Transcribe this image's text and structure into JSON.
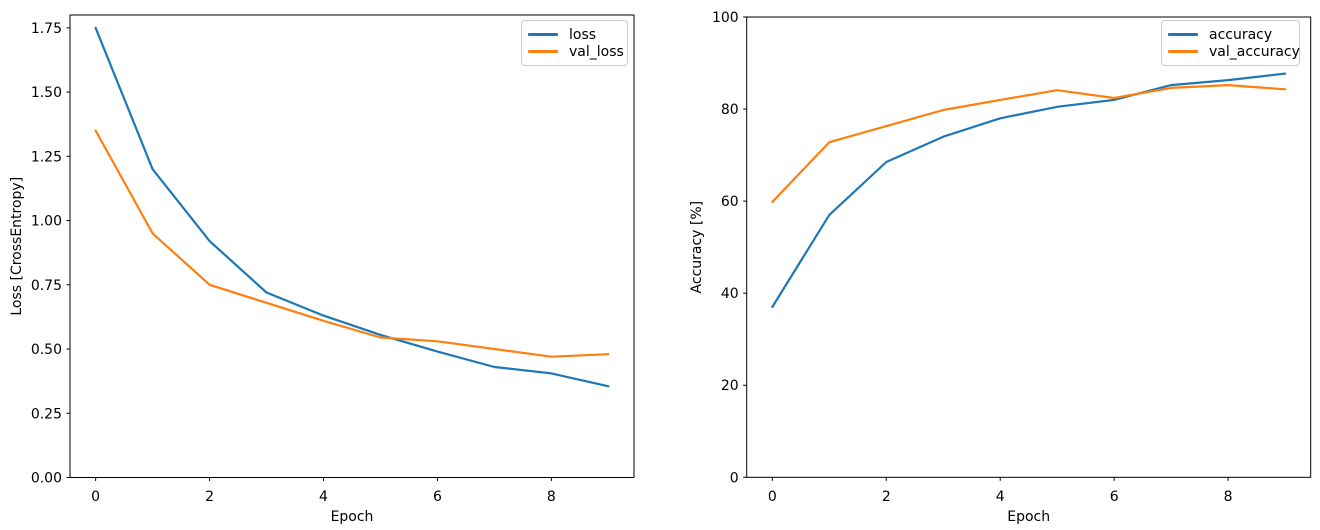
{
  "figure": {
    "background": "#ffffff"
  },
  "chart_data": [
    {
      "type": "line",
      "title": "",
      "xlabel": "Epoch",
      "ylabel": "Loss [CrossEntropy]",
      "x": [
        0,
        1,
        2,
        3,
        4,
        5,
        6,
        7,
        8,
        9
      ],
      "series": [
        {
          "name": "loss",
          "color": "#1f77b4",
          "values": [
            1.75,
            1.2,
            0.92,
            0.72,
            0.63,
            0.555,
            0.49,
            0.43,
            0.405,
            0.355
          ]
        },
        {
          "name": "val_loss",
          "color": "#ff7f0e",
          "values": [
            1.35,
            0.95,
            0.75,
            0.68,
            0.61,
            0.545,
            0.53,
            0.5,
            0.47,
            0.48
          ]
        }
      ],
      "xlim": [
        -0.45,
        9.45
      ],
      "ylim": [
        0,
        1.8
      ],
      "xticks": {
        "values": [
          0,
          2,
          4,
          6,
          8
        ],
        "labels": [
          "0",
          "2",
          "4",
          "6",
          "8"
        ]
      },
      "yticks": {
        "values": [
          0,
          0.25,
          0.5,
          0.75,
          1.0,
          1.25,
          1.5,
          1.75
        ],
        "labels": [
          "0.00",
          "0.25",
          "0.50",
          "0.75",
          "1.00",
          "1.25",
          "1.50",
          "1.75"
        ]
      },
      "legend": {
        "position": "upper right",
        "entries": [
          "loss",
          "val_loss"
        ]
      },
      "grid": false
    },
    {
      "type": "line",
      "title": "",
      "xlabel": "Epoch",
      "ylabel": "Accuracy [%]",
      "x": [
        0,
        1,
        2,
        3,
        4,
        5,
        6,
        7,
        8,
        9
      ],
      "series": [
        {
          "name": "accuracy",
          "color": "#1f77b4",
          "values": [
            37,
            57,
            68.5,
            74,
            78,
            80.5,
            82,
            85.2,
            86.3,
            87.7
          ]
        },
        {
          "name": "val_accuracy",
          "color": "#ff7f0e",
          "values": [
            59.8,
            72.8,
            76.3,
            79.8,
            82,
            84.1,
            82.4,
            84.6,
            85.2,
            84.3
          ]
        }
      ],
      "xlim": [
        -0.45,
        9.45
      ],
      "ylim": [
        0,
        100
      ],
      "xticks": {
        "values": [
          0,
          2,
          4,
          6,
          8
        ],
        "labels": [
          "0",
          "2",
          "4",
          "6",
          "8"
        ]
      },
      "yticks": {
        "values": [
          0,
          20,
          40,
          60,
          80,
          100
        ],
        "labels": [
          "0",
          "20",
          "40",
          "60",
          "80",
          "100"
        ]
      },
      "legend": {
        "position": "upper right",
        "entries": [
          "accuracy",
          "val_accuracy"
        ]
      },
      "grid": false
    }
  ]
}
